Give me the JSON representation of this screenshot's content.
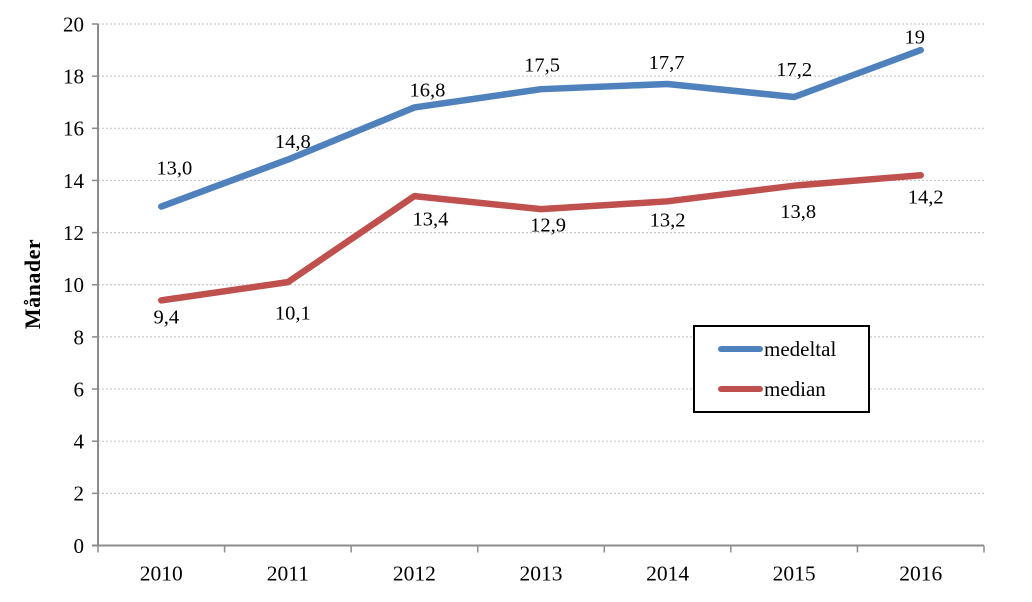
{
  "chart_data": {
    "type": "line",
    "title": "",
    "xlabel": "",
    "ylabel": "Månader",
    "categories": [
      "2010",
      "2011",
      "2012",
      "2013",
      "2014",
      "2015",
      "2016"
    ],
    "y_axis": {
      "min": 0,
      "max": 20,
      "step": 2,
      "tick_labels": [
        "0",
        "2",
        "4",
        "6",
        "8",
        "10",
        "12",
        "14",
        "16",
        "18",
        "20"
      ]
    },
    "grid": true,
    "legend": {
      "position": "center-right",
      "items": [
        "medeltal",
        "median"
      ]
    },
    "series": [
      {
        "name": "medeltal",
        "color": "#4F81BD",
        "values": [
          13.0,
          14.8,
          16.8,
          17.5,
          17.7,
          17.2,
          19
        ],
        "labels": [
          "13,0",
          "14,8",
          "16,8",
          "17,5",
          "17,7",
          "17,2",
          "19"
        ],
        "label_position": "above",
        "label_offsets": [
          [
            13,
            -39
          ],
          [
            5,
            -19
          ],
          [
            13,
            -18
          ],
          [
            1,
            -25
          ],
          [
            -1,
            -22
          ],
          [
            0,
            -28
          ],
          [
            -6,
            -14
          ]
        ]
      },
      {
        "name": "median",
        "color": "#C0504D",
        "values": [
          9.4,
          10.1,
          13.4,
          12.9,
          13.2,
          13.8,
          14.2
        ],
        "labels": [
          "9,4",
          "10,1",
          "13,4",
          "12,9",
          "13,2",
          "13,8",
          "14,2"
        ],
        "label_position": "below",
        "label_offsets": [
          [
            5,
            16
          ],
          [
            5,
            30
          ],
          [
            16,
            22
          ],
          [
            7,
            15
          ],
          [
            0,
            18
          ],
          [
            4,
            25
          ],
          [
            5,
            21
          ]
        ]
      }
    ],
    "colors": {
      "axis_line": "#8C8C8C",
      "gridline": "#C9C9C9",
      "text": "#000000",
      "background": "#FFFFFF",
      "legend_border": "#000000"
    }
  }
}
